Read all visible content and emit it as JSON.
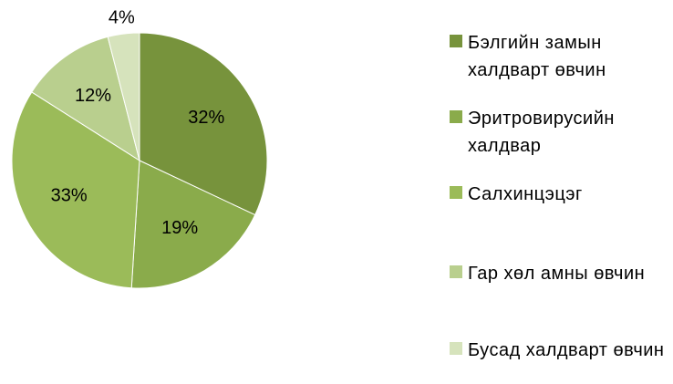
{
  "chart_data": {
    "type": "pie",
    "categories": [
      "Бэлгийн замын халдварт өвчин",
      "Эритровирусийн халдвар",
      "Салхинцэцэг",
      "Гар хөл амны өвчин",
      "Бусад халдварт өвчин"
    ],
    "values": [
      32,
      19,
      33,
      12,
      4
    ],
    "value_labels": [
      "32%",
      "19%",
      "33%",
      "12%",
      "4%"
    ],
    "colors": [
      "#77933c",
      "#8aab4b",
      "#9bbb59",
      "#b9cf8e",
      "#d6e3bc"
    ],
    "legend": "right"
  }
}
